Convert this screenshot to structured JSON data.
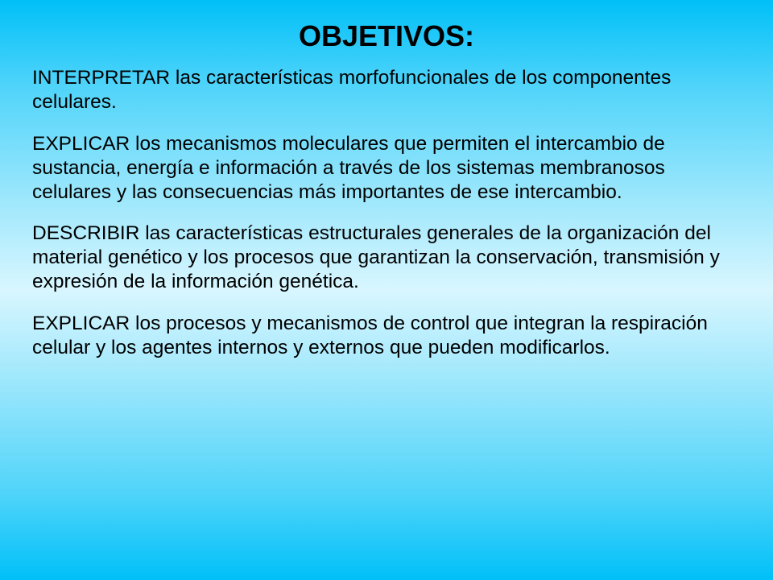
{
  "slide": {
    "title": "OBJETIVOS:",
    "objectives": [
      {
        "keyword": "INTERPRETAR",
        "text": " las características morfofuncionales de los componentes celulares."
      },
      {
        "keyword": "EXPLICAR",
        "text": " los mecanismos moleculares que permiten el intercambio de sustancia, energía e información a través de los sistemas membranosos celulares y las consecuencias más importantes de ese intercambio."
      },
      {
        "keyword": "DESCRIBIR",
        "text": " las características estructurales generales de la organización del material genético y los procesos que garantizan la conservación, transmisión y expresión de la información genética."
      },
      {
        "keyword": "EXPLICAR",
        "text": " los procesos y mecanismos de control que integran la respiración celular y los agentes internos y externos que pueden modificarlos."
      }
    ],
    "styling": {
      "background_gradient_colors": [
        "#00c0f8",
        "#50d4fa",
        "#a0e8fc",
        "#d8f6ff",
        "#a0e8fc",
        "#50d4fa",
        "#00c0f8"
      ],
      "title_fontsize": 36,
      "title_color": "#000000",
      "title_weight": "bold",
      "body_fontsize": 24.5,
      "body_color": "#000000",
      "font_family": "Arial"
    }
  }
}
